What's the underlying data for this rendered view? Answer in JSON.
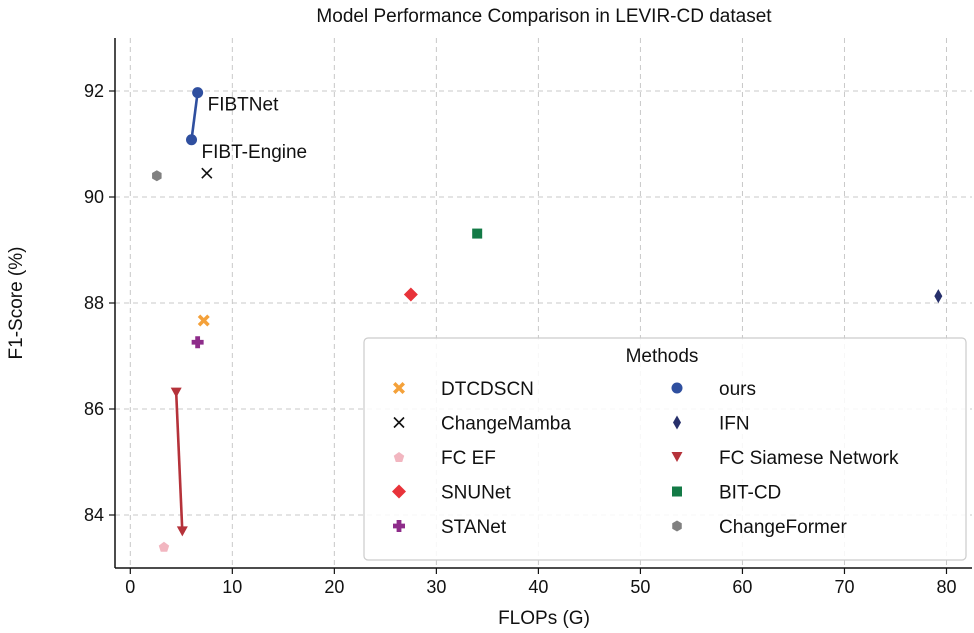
{
  "chart_data": {
    "type": "scatter",
    "title": "Model Performance Comparison in LEVIR-CD dataset",
    "xlabel": "FLOPs (G)",
    "ylabel": "F1-Score (%)",
    "xlim": [
      -1.5,
      82.5
    ],
    "ylim": [
      83.0,
      93.0
    ],
    "xticks": [
      0,
      10,
      20,
      30,
      40,
      50,
      60,
      70,
      80
    ],
    "yticks": [
      84,
      86,
      88,
      90,
      92
    ],
    "grid": true,
    "legend": {
      "title": "Methods",
      "placement": "lower-right",
      "columns": 2
    },
    "series": [
      {
        "name": "DTCDSCN",
        "marker": "x-filled",
        "color": "#f4a13a",
        "points": [
          {
            "x": 7.2,
            "y": 87.67
          }
        ]
      },
      {
        "name": "ChangeMamba",
        "marker": "x",
        "color": "#111111",
        "points": [
          {
            "x": 7.5,
            "y": 90.45
          }
        ]
      },
      {
        "name": "FC EF",
        "marker": "pentagon",
        "color": "#f2b6c0",
        "points": [
          {
            "x": 3.3,
            "y": 83.4
          }
        ]
      },
      {
        "name": "SNUNet",
        "marker": "diamond",
        "color": "#e8333a",
        "points": [
          {
            "x": 27.5,
            "y": 88.16
          }
        ]
      },
      {
        "name": "STANet",
        "marker": "plus-filled",
        "color": "#8e2c8a",
        "points": [
          {
            "x": 6.6,
            "y": 87.26
          }
        ]
      },
      {
        "name": "ours",
        "marker": "circle",
        "color": "#2f4f9f",
        "connected": true,
        "points": [
          {
            "x": 6.6,
            "y": 91.97,
            "label": "FIBTNet"
          },
          {
            "x": 6.0,
            "y": 91.08,
            "label": "FIBT-Engine"
          }
        ]
      },
      {
        "name": "IFN",
        "marker": "thin-diamond",
        "color": "#27306b",
        "points": [
          {
            "x": 79.2,
            "y": 88.13
          }
        ]
      },
      {
        "name": "FC Siamese Network",
        "marker": "triangle-down",
        "color": "#b5323a",
        "connected": true,
        "points": [
          {
            "x": 4.5,
            "y": 86.31
          },
          {
            "x": 5.1,
            "y": 83.69
          }
        ]
      },
      {
        "name": "BIT-CD",
        "marker": "square",
        "color": "#137a46",
        "points": [
          {
            "x": 34.0,
            "y": 89.31
          }
        ]
      },
      {
        "name": "ChangeFormer",
        "marker": "hexagon",
        "color": "#808080",
        "points": [
          {
            "x": 2.6,
            "y": 90.4
          }
        ]
      }
    ]
  }
}
